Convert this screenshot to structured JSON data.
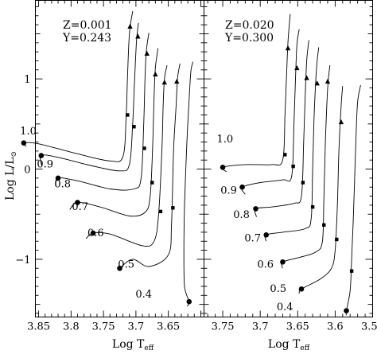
{
  "chart_data": {
    "type": "line",
    "ylabel": "Log L/L",
    "ylabel_symbol": "⊙",
    "xlabel": "Log T",
    "xlabel_subscript": "eff",
    "y_ticks": [
      {
        "value": -1,
        "label": "−1"
      },
      {
        "value": 0,
        "label": "0"
      },
      {
        "value": 1,
        "label": "1"
      }
    ],
    "ylim": [
      -1.64,
      1.87
    ],
    "panels": [
      {
        "name": "left",
        "annotation": [
          "Z=0.001",
          "Y=0.243"
        ],
        "xlim": [
          3.855,
          3.595
        ],
        "x_ticks": [
          {
            "value": 3.85,
            "label": "3.85"
          },
          {
            "value": 3.8,
            "label": "3.8"
          },
          {
            "value": 3.75,
            "label": "3.75"
          },
          {
            "value": 3.7,
            "label": "3.7"
          },
          {
            "value": 3.65,
            "label": "3.65"
          }
        ],
        "tracks": [
          {
            "mass": "1.0",
            "label": {
              "x": 3.866,
              "y": 0.43
            },
            "points": [
              [
                3.869,
                0.25
              ],
              [
                3.873,
                0.29
              ],
              [
                3.85,
                0.28
              ],
              [
                3.79,
                0.17
              ],
              [
                3.74,
                0.09
              ],
              [
                3.72,
                0.14
              ],
              [
                3.715,
                0.6
              ],
              [
                3.713,
                1.02
              ],
              [
                3.71,
                1.5
              ],
              [
                3.705,
                1.75
              ]
            ],
            "square": [
              3.713,
              0.6
            ],
            "triangle": [
              3.709,
              1.58
            ]
          },
          {
            "mass": "0.9",
            "label": {
              "x": 3.84,
              "y": 0.06
            },
            "points": [
              [
                3.845,
                0.03
              ],
              [
                3.846,
                0.15
              ],
              [
                3.82,
                0.13
              ],
              [
                3.77,
                0.04
              ],
              [
                3.725,
                -0.02
              ],
              [
                3.71,
                0.05
              ],
              [
                3.705,
                0.5
              ],
              [
                3.702,
                1.0
              ],
              [
                3.699,
                1.43
              ],
              [
                3.696,
                1.62
              ]
            ],
            "square": [
              3.703,
              0.47
            ],
            "triangle": [
              3.697,
              1.47
            ]
          },
          {
            "mass": "0.8",
            "label": {
              "x": 3.813,
              "y": -0.16
            },
            "points": [
              [
                3.824,
                -0.19
              ],
              [
                3.82,
                -0.1
              ],
              [
                3.79,
                -0.13
              ],
              [
                3.74,
                -0.22
              ],
              [
                3.703,
                -0.22
              ],
              [
                3.692,
                -0.1
              ],
              [
                3.688,
                0.5
              ],
              [
                3.686,
                1.0
              ],
              [
                3.684,
                1.3
              ],
              [
                3.68,
                1.51
              ]
            ],
            "square": [
              3.687,
              0.23
            ],
            "triangle": [
              3.683,
              1.28
            ]
          },
          {
            "mass": "0.7",
            "label": {
              "x": 3.786,
              "y": -0.41
            },
            "points": [
              [
                3.802,
                -0.45
              ],
              [
                3.79,
                -0.37
              ],
              [
                3.755,
                -0.42
              ],
              [
                3.71,
                -0.52
              ],
              [
                3.686,
                -0.48
              ],
              [
                3.678,
                -0.3
              ],
              [
                3.674,
                0.3
              ],
              [
                3.672,
                0.8
              ],
              [
                3.67,
                1.12
              ],
              [
                3.666,
                1.34
              ]
            ],
            "square": [
              3.675,
              -0.15
            ],
            "triangle": [
              3.67,
              1.05
            ]
          },
          {
            "mass": "0.6",
            "label": {
              "x": 3.762,
              "y": -0.7
            },
            "points": [
              [
                3.777,
                -0.77
              ],
              [
                3.766,
                -0.71
              ],
              [
                3.74,
                -0.72
              ],
              [
                3.69,
                -0.85
              ],
              [
                3.672,
                -0.8
              ],
              [
                3.665,
                -0.5
              ],
              [
                3.66,
                0.2
              ],
              [
                3.658,
                0.7
              ],
              [
                3.656,
                1.0
              ],
              [
                3.652,
                1.15
              ]
            ],
            "square": [
              3.662,
              -0.47
            ],
            "triangle": [
              3.656,
              0.96
            ]
          },
          {
            "mass": "0.5",
            "label": {
              "x": 3.715,
              "y": -1.05
            },
            "points": [
              [
                3.728,
                -1.12
              ],
              [
                3.725,
                -1.1
              ],
              [
                3.705,
                -1.0
              ],
              [
                3.68,
                -1.08
              ],
              [
                3.65,
                -0.95
              ],
              [
                3.645,
                -0.6
              ],
              [
                3.642,
                0.2
              ],
              [
                3.638,
                0.7
              ],
              [
                3.636,
                1.0
              ],
              [
                3.632,
                1.17
              ]
            ],
            "square": [
              3.643,
              -0.43
            ],
            "triangle": [
              3.637,
              0.97
            ]
          },
          {
            "mass": "0.4",
            "label": {
              "x": 3.688,
              "y": -1.38
            },
            "points": [
              [
                3.621,
                -1.52
              ],
              [
                3.618,
                -1.47
              ],
              [
                3.625,
                -1.3
              ],
              [
                3.626,
                -0.9
              ],
              [
                3.625,
                -0.4
              ],
              [
                3.622,
                0.2
              ],
              [
                3.62,
                0.5
              ],
              [
                3.617,
                0.9
              ],
              [
                3.615,
                1.1
              ],
              [
                3.612,
                1.19
              ]
            ],
            "square": null,
            "triangle": null
          }
        ]
      },
      {
        "name": "right",
        "annotation": [
          "Z=0.020",
          "Y=0.300"
        ],
        "xlim": [
          3.775,
          3.55
        ],
        "x_ticks": [
          {
            "value": 3.75,
            "label": "3.75"
          },
          {
            "value": 3.7,
            "label": "3.7"
          },
          {
            "value": 3.65,
            "label": "3.65"
          },
          {
            "value": 3.6,
            "label": "3.6"
          },
          {
            "value": 3.55,
            "label": "3.55"
          }
        ],
        "tracks": [
          {
            "mass": "1.0",
            "label": {
              "x": 3.747,
              "y": 0.34
            },
            "points": [
              [
                3.745,
                -0.03
              ],
              [
                3.75,
                0.02
              ],
              [
                3.72,
                0.05
              ],
              [
                3.685,
                0.05
              ],
              [
                3.67,
                0.1
              ],
              [
                3.667,
                0.6
              ],
              [
                3.665,
                1.0
              ],
              [
                3.663,
                1.4
              ],
              [
                3.66,
                1.72
              ]
            ],
            "square": [
              3.667,
              0.16
            ],
            "triangle": [
              3.663,
              1.34
            ]
          },
          {
            "mass": "0.9",
            "label": {
              "x": 3.742,
              "y": -0.23
            },
            "points": [
              [
                3.72,
                -0.28
              ],
              [
                3.724,
                -0.2
              ],
              [
                3.7,
                -0.15
              ],
              [
                3.67,
                -0.12
              ],
              [
                3.658,
                -0.08
              ],
              [
                3.655,
                0.5
              ],
              [
                3.653,
                1.0
              ],
              [
                3.651,
                1.38
              ],
              [
                3.648,
                1.55
              ]
            ],
            "square": [
              3.656,
              0.03
            ],
            "triangle": [
              3.651,
              1.12
            ]
          },
          {
            "mass": "0.8",
            "label": {
              "x": 3.725,
              "y": -0.5
            },
            "points": [
              [
                3.705,
                -0.53
              ],
              [
                3.706,
                -0.44
              ],
              [
                3.685,
                -0.42
              ],
              [
                3.655,
                -0.38
              ],
              [
                3.645,
                -0.3
              ],
              [
                3.642,
                0.3
              ],
              [
                3.64,
                0.8
              ],
              [
                3.638,
                1.2
              ],
              [
                3.635,
                1.43
              ]
            ],
            "square": [
              3.643,
              -0.15
            ],
            "triangle": [
              3.638,
              1.01
            ]
          },
          {
            "mass": "0.7",
            "label": {
              "x": 3.71,
              "y": -0.76
            },
            "points": [
              [
                3.692,
                -0.8
              ],
              [
                3.692,
                -0.73
              ],
              [
                3.67,
                -0.7
              ],
              [
                3.64,
                -0.66
              ],
              [
                3.632,
                -0.55
              ],
              [
                3.63,
                0.0
              ],
              [
                3.628,
                0.6
              ],
              [
                3.625,
                1.1
              ],
              [
                3.622,
                1.35
              ]
            ],
            "square": [
              3.63,
              -0.42
            ],
            "triangle": [
              3.624,
              0.95
            ]
          },
          {
            "mass": "0.6",
            "label": {
              "x": 3.693,
              "y": -1.05
            },
            "points": [
              [
                3.67,
                -1.1
              ],
              [
                3.67,
                -1.03
              ],
              [
                3.648,
                -0.98
              ],
              [
                3.626,
                -0.92
              ],
              [
                3.617,
                -0.8
              ],
              [
                3.615,
                -0.3
              ],
              [
                3.613,
                0.3
              ],
              [
                3.61,
                0.9
              ],
              [
                3.607,
                1.15
              ]
            ],
            "square": [
              3.615,
              -0.62
            ],
            "triangle": [
              3.61,
              0.97
            ]
          },
          {
            "mass": "0.5",
            "label": {
              "x": 3.676,
              "y": -1.32
            },
            "points": [
              [
                3.648,
                -1.38
              ],
              [
                3.645,
                -1.33
              ],
              [
                3.62,
                -1.22
              ],
              [
                3.605,
                -1.1
              ],
              [
                3.6,
                -0.9
              ],
              [
                3.597,
                -0.4
              ],
              [
                3.595,
                0.2
              ],
              [
                3.592,
                0.7
              ],
              [
                3.59,
                0.92
              ]
            ],
            "square": [
              3.598,
              -0.78
            ],
            "triangle": [
              3.592,
              0.52
            ]
          },
          {
            "mass": "0.4",
            "label": {
              "x": 3.667,
              "y": -1.52
            },
            "points": [
              [
                3.585,
                -1.62
              ],
              [
                3.585,
                -1.57
              ],
              [
                3.58,
                -1.35
              ],
              [
                3.578,
                -1.0
              ],
              [
                3.576,
                -0.6
              ],
              [
                3.574,
                -0.1
              ],
              [
                3.572,
                0.4
              ],
              [
                3.57,
                0.75
              ],
              [
                3.566,
                0.93
              ]
            ],
            "square": [
              3.578,
              -1.13
            ],
            "triangle": null
          }
        ]
      }
    ]
  }
}
